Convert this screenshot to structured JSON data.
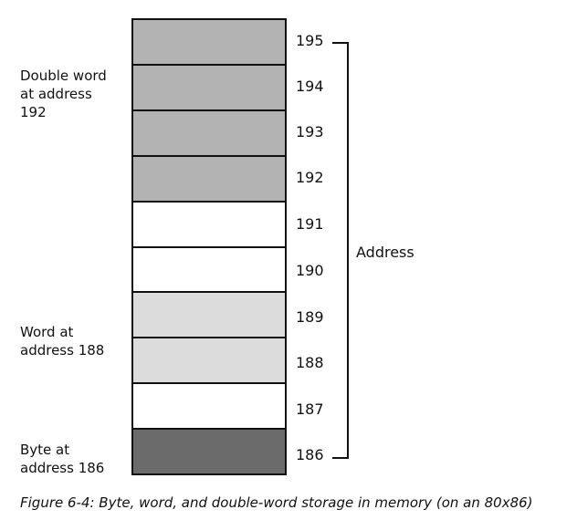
{
  "memory": {
    "cells": [
      {
        "address": "195",
        "kind": "dword",
        "fill": "#b3b3b3"
      },
      {
        "address": "194",
        "kind": "dword",
        "fill": "#b3b3b3"
      },
      {
        "address": "193",
        "kind": "dword",
        "fill": "#b3b3b3"
      },
      {
        "address": "192",
        "kind": "dword",
        "fill": "#b3b3b3"
      },
      {
        "address": "191",
        "kind": "empty",
        "fill": "#ffffff"
      },
      {
        "address": "190",
        "kind": "empty",
        "fill": "#ffffff"
      },
      {
        "address": "189",
        "kind": "word",
        "fill": "#dcdcdc"
      },
      {
        "address": "188",
        "kind": "word",
        "fill": "#dcdcdc"
      },
      {
        "address": "187",
        "kind": "empty",
        "fill": "#ffffff"
      },
      {
        "address": "186",
        "kind": "byte",
        "fill": "#6b6b6b"
      }
    ]
  },
  "labels": {
    "dword": "Double word\nat address\n192",
    "word": "Word at\naddress 188",
    "byte": "Byte at\naddress 186",
    "address": "Address"
  },
  "caption": "Figure 6-4: Byte, word, and double-word storage in memory (on an 80x86)"
}
